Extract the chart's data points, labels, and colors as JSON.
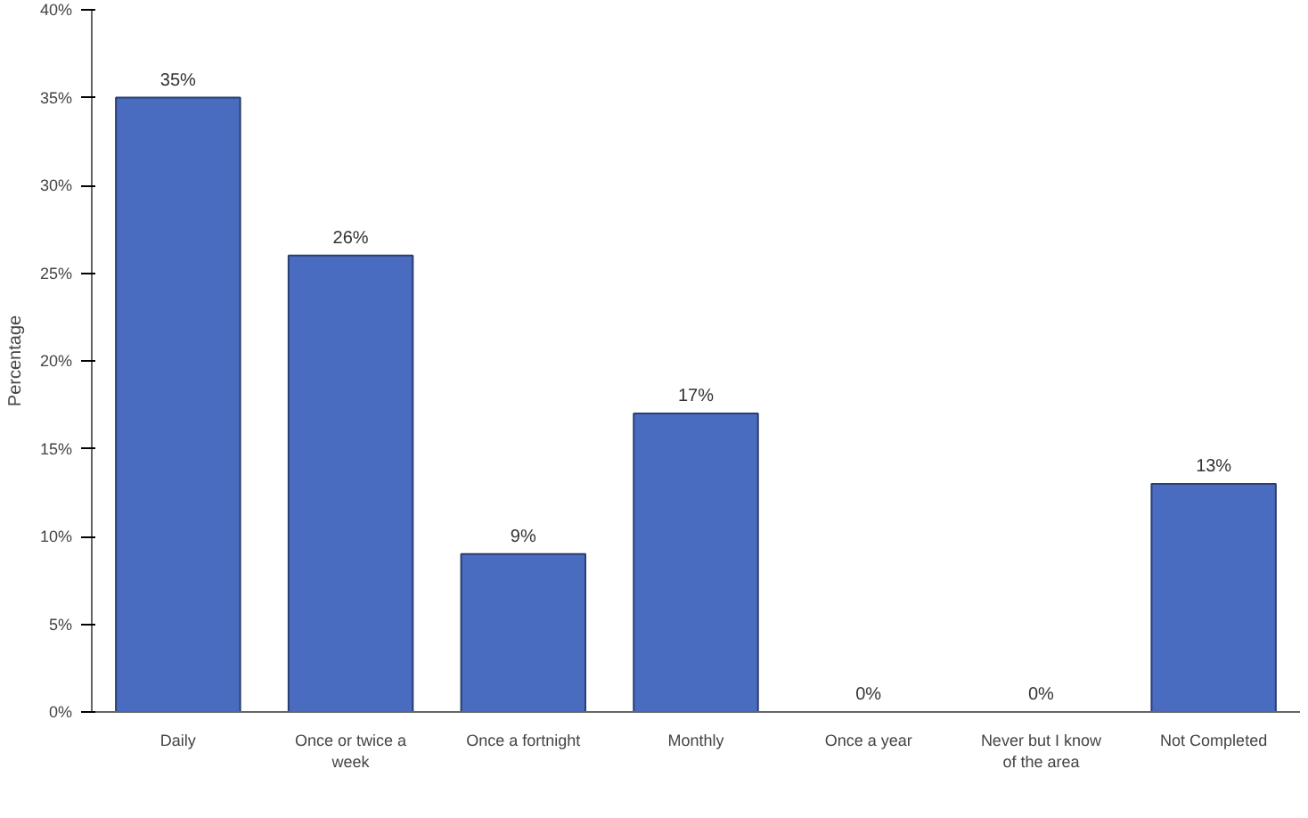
{
  "chart_data": {
    "type": "bar",
    "ylabel": "Percentage",
    "categories": [
      "Daily",
      "Once or twice a week",
      "Once a fortnight",
      "Monthly",
      "Once a year",
      "Never but I know of the area",
      "Not Completed"
    ],
    "values": [
      35,
      26,
      9,
      17,
      0,
      0,
      13
    ],
    "value_labels": [
      "35%",
      "26%",
      "9%",
      "17%",
      "0%",
      "0%",
      "13%"
    ],
    "color": "#4a6cc0",
    "ylim": [
      0,
      40
    ],
    "yticks": [
      {
        "value": 0,
        "label": "0%"
      },
      {
        "value": 5,
        "label": "5%"
      },
      {
        "value": 10,
        "label": "10%"
      },
      {
        "value": 15,
        "label": "15%"
      },
      {
        "value": 20,
        "label": "20%"
      },
      {
        "value": 25,
        "label": "25%"
      },
      {
        "value": 30,
        "label": "30%"
      },
      {
        "value": 35,
        "label": "35%"
      },
      {
        "value": 40,
        "label": "40%"
      }
    ],
    "grid": false
  }
}
